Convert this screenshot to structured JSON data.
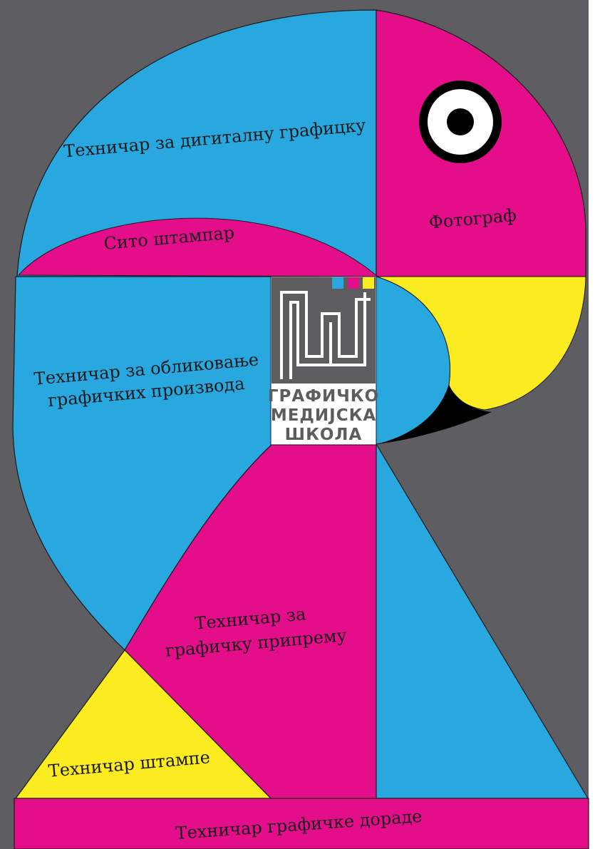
{
  "poster": {
    "labels": {
      "digital_graphics": "Техничар за дигиталну графицку",
      "screen_printer": "Сито штампар",
      "photographer": "Фотограф",
      "design_line1": "Техничар за обликовање",
      "design_line2": "графичких производа",
      "prepress_line1": "Техничар за",
      "prepress_line2": "графичку припрему",
      "print_tech": "Техничар штампе",
      "finishing": "Техничар графичке дораде"
    },
    "logo": {
      "line1": "ГРАФИЧКО",
      "line2": "МЕДИЈСКА",
      "line3": "ШКОЛА",
      "icon": "school-logo-monogram"
    },
    "colors": {
      "background": "#5e5d62",
      "cyan": "#29a8e0",
      "magenta": "#e50e8a",
      "yellow": "#fbec21",
      "black": "#000000",
      "logo_gray": "#5d5d60",
      "white": "#ffffff"
    }
  }
}
